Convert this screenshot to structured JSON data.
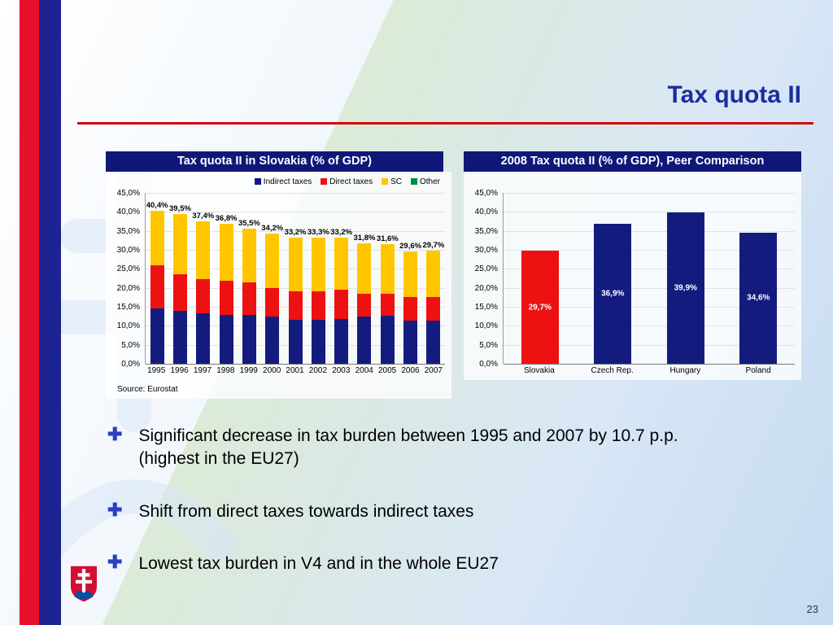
{
  "slide": {
    "title": "Tax quota II",
    "page_number": "23",
    "source": "Source: Eurostat"
  },
  "panels": {
    "left_header": "Tax quota II in Slovakia (% of GDP)",
    "right_header": "2008 Tax quota II (% of GDP), Peer Comparison"
  },
  "bullets": [
    "Significant decrease in tax burden between 1995 and 2007 by 10.7 p.p.\n(highest in the EU27)",
    "Shift from direct taxes towards indirect taxes",
    "Lowest tax burden in V4 and in the whole EU27"
  ],
  "colors": {
    "navy": "#131c7e",
    "red": "#ee1111",
    "yellow": "#ffc600",
    "green": "#008a3c",
    "title_navy": "#1c2d9e",
    "rule_red": "#cf0a0a"
  },
  "chart_data": [
    {
      "type": "bar",
      "stacked": true,
      "title": "Tax quota II in Slovakia (% of GDP)",
      "categories": [
        "1995",
        "1996",
        "1997",
        "1998",
        "1999",
        "2000",
        "2001",
        "2002",
        "2003",
        "2004",
        "2005",
        "2006",
        "2007"
      ],
      "series": [
        {
          "name": "Indirect taxes",
          "color": "#131c7e",
          "values": [
            14.5,
            14.0,
            13.2,
            12.8,
            12.8,
            12.5,
            11.5,
            11.5,
            11.8,
            12.4,
            12.7,
            11.4,
            11.3
          ]
        },
        {
          "name": "Direct taxes",
          "color": "#ee1111",
          "values": [
            11.4,
            9.5,
            9.0,
            9.0,
            8.7,
            7.5,
            7.5,
            7.5,
            7.7,
            6.1,
            5.8,
            6.1,
            6.2
          ]
        },
        {
          "name": "SC",
          "color": "#ffc600",
          "values": [
            14.5,
            16.0,
            15.2,
            15.0,
            14.0,
            14.2,
            14.2,
            14.3,
            13.7,
            13.3,
            13.1,
            12.1,
            12.2
          ]
        },
        {
          "name": "Other",
          "color": "#008a3c",
          "values": [
            0,
            0,
            0,
            0,
            0,
            0,
            0,
            0,
            0,
            0,
            0,
            0,
            0
          ]
        }
      ],
      "total_labels": [
        "40,4%",
        "39,5%",
        "37,4%",
        "36,8%",
        "35,5%",
        "34,2%",
        "33,2%",
        "33,3%",
        "33,2%",
        "31,8%",
        "31,6%",
        "29,6%",
        "29,7%"
      ],
      "ylabel_ticks": [
        "45,0%",
        "40,0%",
        "35,0%",
        "30,0%",
        "25,0%",
        "20,0%",
        "15,0%",
        "10,0%",
        "5,0%",
        "0,0%"
      ],
      "ylim": [
        0,
        45
      ],
      "grid": true,
      "legend_position": "top",
      "xlabel": "",
      "ylabel": ""
    },
    {
      "type": "bar",
      "stacked": false,
      "title": "2008 Tax quota II (% of GDP), Peer Comparison",
      "categories": [
        "Slovakia",
        "Czech Rep.",
        "Hungary",
        "Poland"
      ],
      "values": [
        29.7,
        36.9,
        39.9,
        34.6
      ],
      "value_labels": [
        "29,7%",
        "36,9%",
        "39,9%",
        "34,6%"
      ],
      "bar_colors": [
        "#ee1111",
        "#131c7e",
        "#131c7e",
        "#131c7e"
      ],
      "ylabel_ticks": [
        "45,0%",
        "40,0%",
        "35,0%",
        "30,0%",
        "25,0%",
        "20,0%",
        "15,0%",
        "10,0%",
        "5,0%",
        "0,0%"
      ],
      "ylim": [
        0,
        45
      ],
      "grid": true,
      "legend_position": "none",
      "xlabel": "",
      "ylabel": ""
    }
  ]
}
